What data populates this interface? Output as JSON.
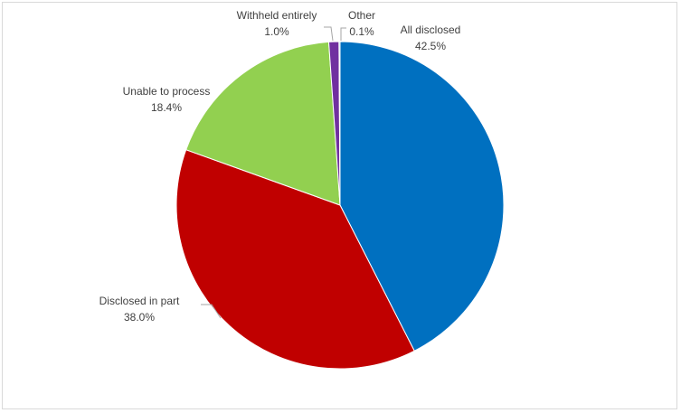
{
  "chart_data": {
    "type": "pie",
    "title": "",
    "start_angle_deg": 0,
    "direction": "clockwise",
    "legend": "none",
    "slices": [
      {
        "label": "All disclosed",
        "value": 42.5,
        "display": "42.5%",
        "color": "#0070C0"
      },
      {
        "label": "Disclosed in part",
        "value": 38.0,
        "display": "38.0%",
        "color": "#C00000"
      },
      {
        "label": "Unable to process",
        "value": 18.4,
        "display": "18.4%",
        "color": "#92D050"
      },
      {
        "label": "Withheld entirely",
        "value": 1.0,
        "display": "1.0%",
        "color": "#7030A0"
      },
      {
        "label": "Other",
        "value": 0.1,
        "display": "0.1%",
        "color": "#00B0F0"
      }
    ]
  }
}
